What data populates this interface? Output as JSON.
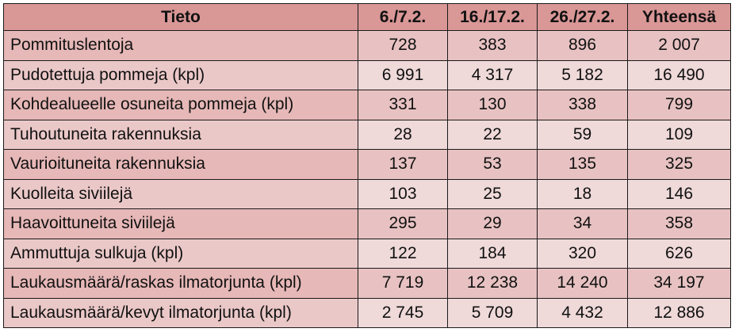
{
  "table": {
    "headers": [
      "Tieto",
      "6./7.2.",
      "16./17.2.",
      "26./27.2.",
      "Yhteensä"
    ],
    "rows": [
      [
        "Pommituslentoja",
        "728",
        "383",
        "896",
        "2 007"
      ],
      [
        "Pudotettuja pommeja (kpl)",
        "6 991",
        "4 317",
        "5 182",
        "16 490"
      ],
      [
        "Kohdealueelle osuneita pommeja (kpl)",
        "331",
        "130",
        "338",
        "799"
      ],
      [
        "Tuhoutuneita rakennuksia",
        "28",
        "22",
        "59",
        "109"
      ],
      [
        "Vaurioituneita rakennuksia",
        "137",
        "53",
        "135",
        "325"
      ],
      [
        "Kuolleita siviilejä",
        "103",
        "25",
        "18",
        "146"
      ],
      [
        "Haavoittuneita siviilejä",
        "295",
        "29",
        "34",
        "358"
      ],
      [
        "Ammuttuja sulkuja (kpl)",
        "122",
        "184",
        "320",
        "626"
      ],
      [
        "Laukausmäärä/raskas ilmatorjunta (kpl)",
        "7 719",
        "12 238",
        "14 240",
        "34 197"
      ],
      [
        "Laukausmäärä/kevyt ilmatorjunta (kpl)",
        "2 745",
        "5 709",
        "4 432",
        "12 886"
      ]
    ]
  },
  "colors": {
    "header_bg": "#d99796",
    "row_odd_bg": "#e8c2c2",
    "row_even_bg": "#efd9d9",
    "border": "#1a1a1a"
  }
}
